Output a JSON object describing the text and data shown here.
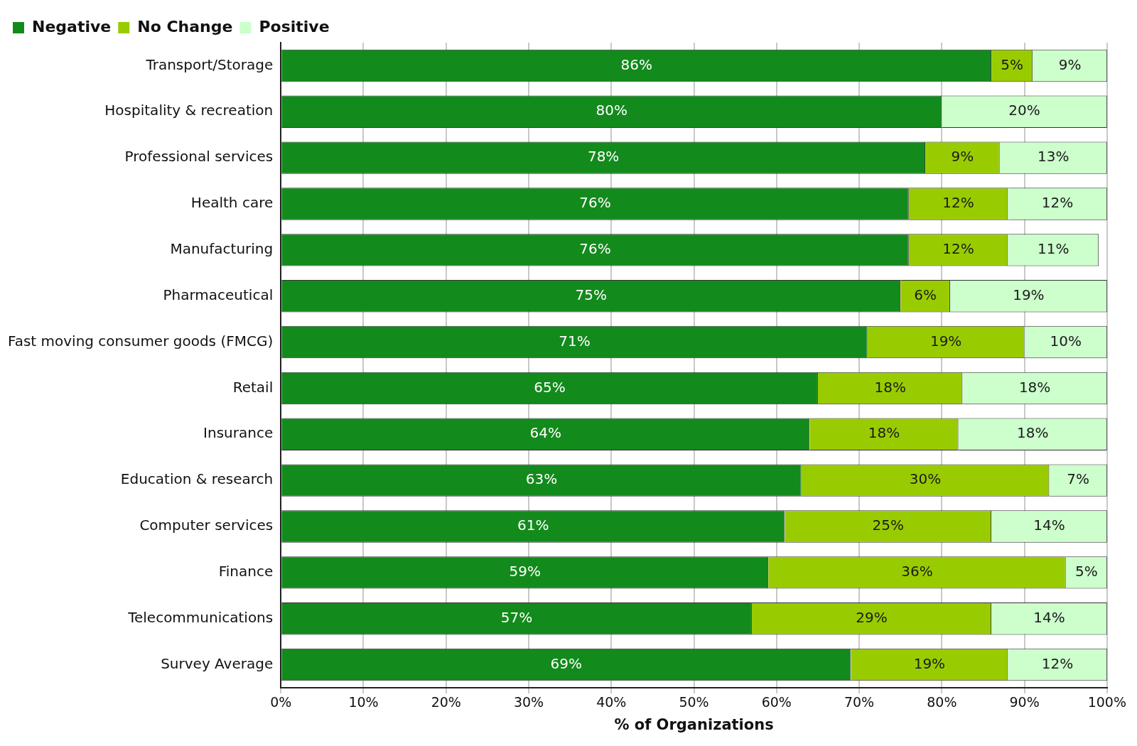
{
  "chart_data": {
    "type": "bar",
    "orientation": "horizontal",
    "stacked": true,
    "xlabel": "% of Organizations",
    "categories": [
      "Transport/Storage",
      "Hospitality & recreation",
      "Professional services",
      "Health care",
      "Manufacturing",
      "Pharmaceutical",
      "Fast moving consumer goods (FMCG)",
      "Retail",
      "Insurance",
      "Education & research",
      "Computer services",
      "Finance",
      "Telecommunications",
      "Survey Average"
    ],
    "series": [
      {
        "name": "Negative",
        "color": "#138a1c",
        "values": [
          86,
          80,
          78,
          76,
          76,
          75,
          71,
          65,
          64,
          63,
          61,
          59,
          57,
          69
        ],
        "value_labels": [
          "86%",
          "80%",
          "78%",
          "76%",
          "76%",
          "75%",
          "71%",
          "65%",
          "64%",
          "63%",
          "61%",
          "59%",
          "57%",
          "69%"
        ]
      },
      {
        "name": "No Change",
        "color": "#99cc00",
        "values": [
          5,
          null,
          9,
          12,
          12,
          6,
          19,
          17.5,
          18,
          30,
          25,
          36,
          29,
          19
        ],
        "value_labels": [
          "5%",
          null,
          "9%",
          "12%",
          "12%",
          "6%",
          "19%",
          "18%",
          "18%",
          "30%",
          "25%",
          "36%",
          "29%",
          "19%"
        ]
      },
      {
        "name": "Positive",
        "color": "#ccffcc",
        "values": [
          9,
          20,
          13,
          12,
          11,
          19,
          10,
          17.5,
          18,
          7,
          14,
          5,
          14,
          12
        ],
        "value_labels": [
          "9%",
          "20%",
          "13%",
          "12%",
          "11%",
          "19%",
          "10%",
          "18%",
          "18%",
          "7%",
          "14%",
          "5%",
          "14%",
          "12%"
        ]
      }
    ],
    "xlim": [
      0,
      100
    ],
    "xticks": [
      {
        "value": 0,
        "label": "0%"
      },
      {
        "value": 10,
        "label": "10%"
      },
      {
        "value": 20,
        "label": "20%"
      },
      {
        "value": 30,
        "label": "30%"
      },
      {
        "value": 40,
        "label": "40%"
      },
      {
        "value": 50,
        "label": "50%"
      },
      {
        "value": 60,
        "label": "60%"
      },
      {
        "value": 70,
        "label": "70%"
      },
      {
        "value": 80,
        "label": "80%"
      },
      {
        "value": 90,
        "label": "90%"
      },
      {
        "value": 100,
        "label": "100%"
      }
    ],
    "grid": "x",
    "legend": "top left"
  }
}
